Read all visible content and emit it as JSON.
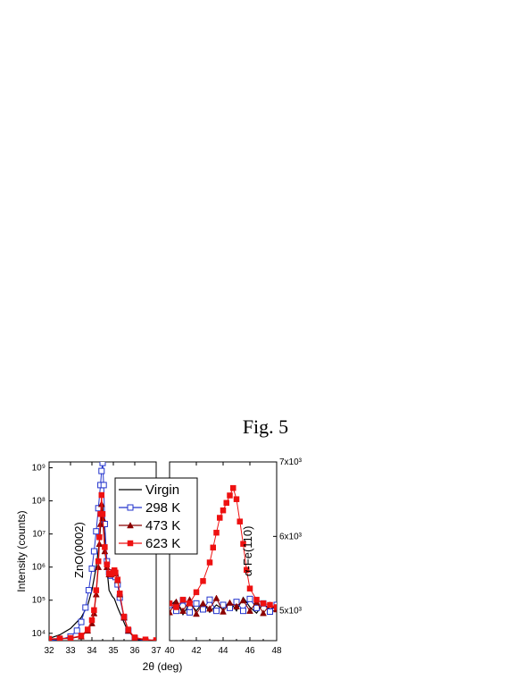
{
  "figure": {
    "title": "Fig. 5"
  },
  "chart_data": [
    {
      "panel": "left",
      "type": "line",
      "xlabel": "2θ (deg)",
      "ylabel": "Intensity (counts)",
      "xlim": [
        32,
        37
      ],
      "ylim": [
        6000,
        1500000000
      ],
      "yscale": "log",
      "x_ticks": [
        32,
        33,
        34,
        35,
        36,
        37
      ],
      "y_ticks": [
        {
          "value": 10000,
          "label": "10⁴"
        },
        {
          "value": 100000,
          "label": "10⁵"
        },
        {
          "value": 1000000,
          "label": "10⁶"
        },
        {
          "value": 10000000,
          "label": "10⁷"
        },
        {
          "value": 100000000,
          "label": "10⁸"
        },
        {
          "value": 1000000000,
          "label": "10⁹"
        }
      ],
      "annotation": "ZnO(0002)",
      "series": [
        {
          "name": "Virgin",
          "color": "#000000",
          "marker": "none",
          "x": [
            32.0,
            32.5,
            33.0,
            33.5,
            33.8,
            34.0,
            34.2,
            34.35,
            34.45,
            34.5,
            34.55,
            34.65,
            34.8,
            34.95,
            35.05,
            35.2,
            35.4,
            35.6,
            35.8,
            36.0,
            36.5,
            37.0
          ],
          "y": [
            7000,
            9000,
            14000,
            30000,
            70000,
            200000,
            1000000,
            6000000,
            40000000,
            80000000,
            20000000,
            2000000,
            200000,
            130000,
            110000,
            60000,
            30000,
            15000,
            10000,
            7000,
            5500,
            5000
          ]
        },
        {
          "name": "298 K",
          "color": "#2233cc",
          "marker": "open-square",
          "x": [
            32.0,
            32.5,
            33.0,
            33.3,
            33.5,
            33.7,
            33.85,
            34.0,
            34.1,
            34.2,
            34.3,
            34.4,
            34.45,
            34.5,
            34.55,
            34.6,
            34.7,
            34.8,
            34.9,
            35.0,
            35.1,
            35.2,
            35.3,
            35.5,
            35.7,
            36.0,
            36.5,
            37.0
          ],
          "y": [
            6000,
            6500,
            8000,
            12000,
            22000,
            60000,
            200000,
            900000,
            3000000,
            12000000,
            60000000,
            300000000,
            800000000,
            1400000000,
            300000000,
            20000000,
            1500000,
            700000,
            550000,
            600000,
            500000,
            300000,
            120000,
            30000,
            12000,
            7000,
            5800,
            5500
          ]
        },
        {
          "name": "473 K",
          "color": "#8b0000",
          "marker": "filled-triangle",
          "x": [
            32.0,
            32.5,
            33.0,
            33.5,
            33.8,
            34.0,
            34.1,
            34.2,
            34.3,
            34.35,
            34.4,
            34.45,
            34.5,
            34.6,
            34.7,
            34.8,
            34.9,
            35.0,
            35.05,
            35.1,
            35.2,
            35.3,
            35.5,
            35.7,
            36.0,
            36.5,
            37.0
          ],
          "y": [
            6500,
            6800,
            7000,
            8000,
            12000,
            20000,
            40000,
            150000,
            1000000,
            5000000,
            20000000,
            80000000,
            30000000,
            3000000,
            1000000,
            600000,
            600000,
            700000,
            750000,
            650000,
            400000,
            150000,
            30000,
            12000,
            7000,
            6200,
            6000
          ]
        },
        {
          "name": "623 K",
          "color": "#ee1111",
          "marker": "filled-square",
          "x": [
            32.0,
            32.5,
            33.0,
            33.5,
            33.8,
            34.0,
            34.1,
            34.2,
            34.3,
            34.35,
            34.4,
            34.45,
            34.5,
            34.6,
            34.7,
            34.8,
            34.9,
            35.0,
            35.05,
            35.1,
            35.2,
            35.3,
            35.5,
            35.7,
            36.0,
            36.5,
            37.0
          ],
          "y": [
            6800,
            7000,
            7200,
            8500,
            13000,
            25000,
            50000,
            200000,
            1500000,
            8000000,
            40000000,
            150000000,
            40000000,
            4000000,
            1200000,
            650000,
            620000,
            700000,
            800000,
            680000,
            420000,
            160000,
            32000,
            13000,
            7500,
            6500,
            6200
          ]
        }
      ]
    },
    {
      "panel": "right",
      "type": "line",
      "xlabel": "",
      "ylabel": "",
      "xlim": [
        40,
        48
      ],
      "ylim": [
        4600,
        7000
      ],
      "x_ticks": [
        40,
        42,
        44,
        46,
        48
      ],
      "y_ticks": [
        {
          "value": 5000,
          "label": "5x10³"
        },
        {
          "value": 6000,
          "label": "6x10³"
        },
        {
          "value": 7000,
          "label": "7x10³"
        }
      ],
      "annotation": "α-Fe(110)",
      "series": [
        {
          "name": "Virgin",
          "color": "#000000",
          "marker": "none",
          "x": [
            40,
            40.5,
            41,
            41.5,
            42,
            42.5,
            43,
            43.5,
            44,
            44.5,
            45,
            45.5,
            46,
            46.5,
            47,
            47.5,
            48
          ],
          "y": [
            5050,
            5150,
            4950,
            5100,
            5000,
            5120,
            4980,
            5080,
            5020,
            5130,
            5000,
            5180,
            5050,
            4970,
            5100,
            5020,
            5060
          ]
        },
        {
          "name": "298 K",
          "color": "#2233cc",
          "marker": "open-square",
          "x": [
            40,
            40.5,
            41,
            41.5,
            42,
            42.5,
            43,
            43.5,
            44,
            44.5,
            45,
            45.5,
            46,
            46.5,
            47,
            47.5,
            48
          ],
          "y": [
            5080,
            5000,
            5140,
            4980,
            5100,
            5020,
            5150,
            5000,
            5080,
            5040,
            5120,
            5000,
            5160,
            5040,
            5100,
            4990,
            5080
          ]
        },
        {
          "name": "473 K",
          "color": "#8b0000",
          "marker": "filled-triangle",
          "x": [
            40,
            40.5,
            41,
            41.5,
            42,
            42.5,
            43,
            43.5,
            44,
            44.5,
            45,
            45.5,
            46,
            46.5,
            47,
            47.5,
            48
          ],
          "y": [
            4980,
            5120,
            5000,
            5150,
            4960,
            5100,
            5030,
            5170,
            4990,
            5110,
            5060,
            5140,
            5000,
            5120,
            4970,
            5080,
            5020
          ]
        },
        {
          "name": "623 K",
          "color": "#ee1111",
          "marker": "filled-square",
          "x": [
            40,
            40.5,
            41,
            41.5,
            42,
            42.5,
            43,
            43.25,
            43.5,
            43.75,
            44,
            44.25,
            44.5,
            44.75,
            45,
            45.25,
            45.5,
            45.75,
            46,
            46.5,
            47,
            47.5,
            48
          ],
          "y": [
            5100,
            5050,
            5150,
            5100,
            5250,
            5400,
            5650,
            5850,
            6050,
            6250,
            6350,
            6450,
            6550,
            6650,
            6500,
            6200,
            5900,
            5550,
            5300,
            5150,
            5100,
            5080,
            5050
          ]
        }
      ]
    }
  ]
}
